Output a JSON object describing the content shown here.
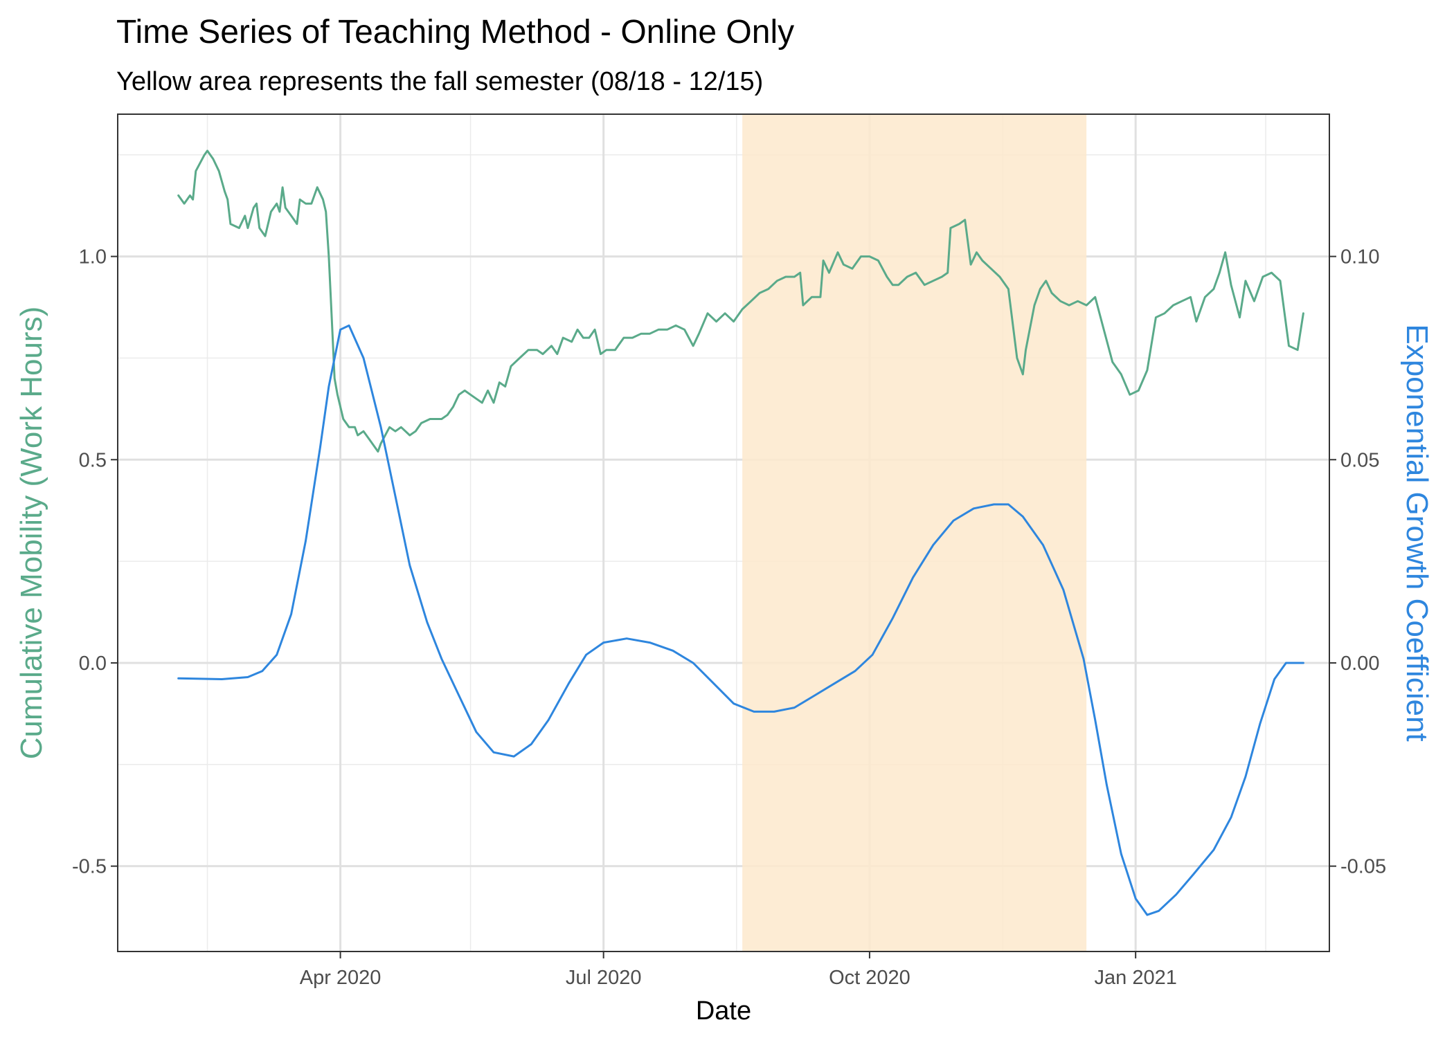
{
  "chart_data": {
    "type": "line",
    "title": "Time Series of Teaching Method - Online Only",
    "subtitle": "Yellow area represents the fall semester (08/18 - 12/15)",
    "xlabel": "Date",
    "ylabel_left": "Cumulative Mobility (Work Hours)",
    "ylabel_right": "Exponential Growth Coefficient",
    "x_ticks": [
      "Apr 2020",
      "Jul 2020",
      "Oct 2020",
      "Jan 2021"
    ],
    "y_left_ticks": [
      "1.0",
      "0.5",
      "0.0",
      "-0.5"
    ],
    "y_right_ticks": [
      "0.10",
      "0.05",
      "0.00",
      "-0.05"
    ],
    "ylim_left": [
      -0.71,
      1.35
    ],
    "ylim_right": [
      -0.071,
      0.135
    ],
    "xlim": [
      "2020-01-15",
      "2021-03-09"
    ],
    "grid": true,
    "shaded_region": {
      "start": "2020-08-18",
      "end": "2020-12-15",
      "color": "#fde9cc"
    },
    "colors": {
      "mobility": "#5aaa8a",
      "growth": "#2e86de",
      "ylabel_left": "#5aaa8a",
      "ylabel_right": "#2e86de"
    },
    "series": [
      {
        "name": "Cumulative Mobility (Work Hours)",
        "axis": "left",
        "points": [
          [
            "2020-02-05",
            1.15
          ],
          [
            "2020-02-07",
            1.13
          ],
          [
            "2020-02-09",
            1.15
          ],
          [
            "2020-02-10",
            1.14
          ],
          [
            "2020-02-11",
            1.21
          ],
          [
            "2020-02-14",
            1.25
          ],
          [
            "2020-02-15",
            1.26
          ],
          [
            "2020-02-17",
            1.24
          ],
          [
            "2020-02-19",
            1.21
          ],
          [
            "2020-02-21",
            1.16
          ],
          [
            "2020-02-22",
            1.14
          ],
          [
            "2020-02-23",
            1.08
          ],
          [
            "2020-02-26",
            1.07
          ],
          [
            "2020-02-28",
            1.1
          ],
          [
            "2020-02-29",
            1.07
          ],
          [
            "2020-03-02",
            1.12
          ],
          [
            "2020-03-03",
            1.13
          ],
          [
            "2020-03-04",
            1.07
          ],
          [
            "2020-03-06",
            1.05
          ],
          [
            "2020-03-08",
            1.11
          ],
          [
            "2020-03-10",
            1.13
          ],
          [
            "2020-03-11",
            1.11
          ],
          [
            "2020-03-12",
            1.17
          ],
          [
            "2020-03-13",
            1.12
          ],
          [
            "2020-03-15",
            1.1
          ],
          [
            "2020-03-17",
            1.08
          ],
          [
            "2020-03-18",
            1.14
          ],
          [
            "2020-03-20",
            1.13
          ],
          [
            "2020-03-22",
            1.13
          ],
          [
            "2020-03-24",
            1.17
          ],
          [
            "2020-03-26",
            1.14
          ],
          [
            "2020-03-27",
            1.11
          ],
          [
            "2020-03-28",
            1.0
          ],
          [
            "2020-03-29",
            0.85
          ],
          [
            "2020-03-30",
            0.7
          ],
          [
            "2020-03-31",
            0.66
          ],
          [
            "2020-04-02",
            0.6
          ],
          [
            "2020-04-04",
            0.58
          ],
          [
            "2020-04-06",
            0.58
          ],
          [
            "2020-04-07",
            0.56
          ],
          [
            "2020-04-09",
            0.57
          ],
          [
            "2020-04-11",
            0.55
          ],
          [
            "2020-04-14",
            0.52
          ],
          [
            "2020-04-15",
            0.54
          ],
          [
            "2020-04-18",
            0.58
          ],
          [
            "2020-04-20",
            0.57
          ],
          [
            "2020-04-22",
            0.58
          ],
          [
            "2020-04-25",
            0.56
          ],
          [
            "2020-04-27",
            0.57
          ],
          [
            "2020-04-29",
            0.59
          ],
          [
            "2020-05-02",
            0.6
          ],
          [
            "2020-05-04",
            0.6
          ],
          [
            "2020-05-06",
            0.6
          ],
          [
            "2020-05-08",
            0.61
          ],
          [
            "2020-05-10",
            0.63
          ],
          [
            "2020-05-12",
            0.66
          ],
          [
            "2020-05-14",
            0.67
          ],
          [
            "2020-05-16",
            0.66
          ],
          [
            "2020-05-18",
            0.65
          ],
          [
            "2020-05-20",
            0.64
          ],
          [
            "2020-05-22",
            0.67
          ],
          [
            "2020-05-24",
            0.64
          ],
          [
            "2020-05-26",
            0.69
          ],
          [
            "2020-05-28",
            0.68
          ],
          [
            "2020-05-30",
            0.73
          ],
          [
            "2020-06-02",
            0.75
          ],
          [
            "2020-06-05",
            0.77
          ],
          [
            "2020-06-08",
            0.77
          ],
          [
            "2020-06-10",
            0.76
          ],
          [
            "2020-06-13",
            0.78
          ],
          [
            "2020-06-15",
            0.76
          ],
          [
            "2020-06-17",
            0.8
          ],
          [
            "2020-06-20",
            0.79
          ],
          [
            "2020-06-22",
            0.82
          ],
          [
            "2020-06-24",
            0.8
          ],
          [
            "2020-06-26",
            0.8
          ],
          [
            "2020-06-28",
            0.82
          ],
          [
            "2020-06-30",
            0.76
          ],
          [
            "2020-07-02",
            0.77
          ],
          [
            "2020-07-05",
            0.77
          ],
          [
            "2020-07-08",
            0.8
          ],
          [
            "2020-07-11",
            0.8
          ],
          [
            "2020-07-14",
            0.81
          ],
          [
            "2020-07-17",
            0.81
          ],
          [
            "2020-07-20",
            0.82
          ],
          [
            "2020-07-23",
            0.82
          ],
          [
            "2020-07-26",
            0.83
          ],
          [
            "2020-07-29",
            0.82
          ],
          [
            "2020-08-01",
            0.78
          ],
          [
            "2020-08-03",
            0.81
          ],
          [
            "2020-08-06",
            0.86
          ],
          [
            "2020-08-09",
            0.84
          ],
          [
            "2020-08-12",
            0.86
          ],
          [
            "2020-08-15",
            0.84
          ],
          [
            "2020-08-18",
            0.87
          ],
          [
            "2020-08-21",
            0.89
          ],
          [
            "2020-08-24",
            0.91
          ],
          [
            "2020-08-27",
            0.92
          ],
          [
            "2020-08-30",
            0.94
          ],
          [
            "2020-09-02",
            0.95
          ],
          [
            "2020-09-05",
            0.95
          ],
          [
            "2020-09-07",
            0.96
          ],
          [
            "2020-09-08",
            0.88
          ],
          [
            "2020-09-11",
            0.9
          ],
          [
            "2020-09-14",
            0.9
          ],
          [
            "2020-09-15",
            0.99
          ],
          [
            "2020-09-17",
            0.96
          ],
          [
            "2020-09-20",
            1.01
          ],
          [
            "2020-09-22",
            0.98
          ],
          [
            "2020-09-25",
            0.97
          ],
          [
            "2020-09-28",
            1.0
          ],
          [
            "2020-10-01",
            1.0
          ],
          [
            "2020-10-04",
            0.99
          ],
          [
            "2020-10-07",
            0.95
          ],
          [
            "2020-10-09",
            0.93
          ],
          [
            "2020-10-11",
            0.93
          ],
          [
            "2020-10-14",
            0.95
          ],
          [
            "2020-10-17",
            0.96
          ],
          [
            "2020-10-20",
            0.93
          ],
          [
            "2020-10-23",
            0.94
          ],
          [
            "2020-10-26",
            0.95
          ],
          [
            "2020-10-28",
            0.96
          ],
          [
            "2020-10-29",
            1.07
          ],
          [
            "2020-11-01",
            1.08
          ],
          [
            "2020-11-03",
            1.09
          ],
          [
            "2020-11-05",
            0.98
          ],
          [
            "2020-11-07",
            1.01
          ],
          [
            "2020-11-09",
            0.99
          ],
          [
            "2020-11-12",
            0.97
          ],
          [
            "2020-11-15",
            0.95
          ],
          [
            "2020-11-18",
            0.92
          ],
          [
            "2020-11-21",
            0.75
          ],
          [
            "2020-11-23",
            0.71
          ],
          [
            "2020-11-24",
            0.77
          ],
          [
            "2020-11-27",
            0.88
          ],
          [
            "2020-11-29",
            0.92
          ],
          [
            "2020-12-01",
            0.94
          ],
          [
            "2020-12-03",
            0.91
          ],
          [
            "2020-12-06",
            0.89
          ],
          [
            "2020-12-09",
            0.88
          ],
          [
            "2020-12-12",
            0.89
          ],
          [
            "2020-12-15",
            0.88
          ],
          [
            "2020-12-18",
            0.9
          ],
          [
            "2020-12-21",
            0.82
          ],
          [
            "2020-12-24",
            0.74
          ],
          [
            "2020-12-27",
            0.71
          ],
          [
            "2020-12-30",
            0.66
          ],
          [
            "2021-01-02",
            0.67
          ],
          [
            "2021-01-05",
            0.72
          ],
          [
            "2021-01-08",
            0.85
          ],
          [
            "2021-01-11",
            0.86
          ],
          [
            "2021-01-14",
            0.88
          ],
          [
            "2021-01-17",
            0.89
          ],
          [
            "2021-01-20",
            0.9
          ],
          [
            "2021-01-22",
            0.84
          ],
          [
            "2021-01-25",
            0.9
          ],
          [
            "2021-01-28",
            0.92
          ],
          [
            "2021-01-30",
            0.96
          ],
          [
            "2021-02-01",
            1.01
          ],
          [
            "2021-02-03",
            0.93
          ],
          [
            "2021-02-06",
            0.85
          ],
          [
            "2021-02-08",
            0.94
          ],
          [
            "2021-02-11",
            0.89
          ],
          [
            "2021-02-14",
            0.95
          ],
          [
            "2021-02-17",
            0.96
          ],
          [
            "2021-02-20",
            0.94
          ],
          [
            "2021-02-23",
            0.78
          ],
          [
            "2021-02-26",
            0.77
          ],
          [
            "2021-02-28",
            0.86
          ]
        ]
      },
      {
        "name": "Exponential Growth Coefficient",
        "axis": "right",
        "points": [
          [
            "2020-02-05",
            -0.0038
          ],
          [
            "2020-02-20",
            -0.004
          ],
          [
            "2020-02-29",
            -0.0035
          ],
          [
            "2020-03-05",
            -0.002
          ],
          [
            "2020-03-10",
            0.002
          ],
          [
            "2020-03-15",
            0.012
          ],
          [
            "2020-03-20",
            0.03
          ],
          [
            "2020-03-25",
            0.053
          ],
          [
            "2020-03-28",
            0.068
          ],
          [
            "2020-04-01",
            0.082
          ],
          [
            "2020-04-04",
            0.083
          ],
          [
            "2020-04-09",
            0.075
          ],
          [
            "2020-04-15",
            0.058
          ],
          [
            "2020-04-20",
            0.041
          ],
          [
            "2020-04-25",
            0.024
          ],
          [
            "2020-05-01",
            0.01
          ],
          [
            "2020-05-06",
            0.001
          ],
          [
            "2020-05-12",
            -0.008
          ],
          [
            "2020-05-18",
            -0.017
          ],
          [
            "2020-05-24",
            -0.022
          ],
          [
            "2020-05-31",
            -0.023
          ],
          [
            "2020-06-06",
            -0.02
          ],
          [
            "2020-06-12",
            -0.014
          ],
          [
            "2020-06-19",
            -0.005
          ],
          [
            "2020-06-25",
            0.002
          ],
          [
            "2020-07-01",
            0.005
          ],
          [
            "2020-07-09",
            0.006
          ],
          [
            "2020-07-17",
            0.005
          ],
          [
            "2020-07-25",
            0.003
          ],
          [
            "2020-08-01",
            0.0
          ],
          [
            "2020-08-08",
            -0.005
          ],
          [
            "2020-08-15",
            -0.01
          ],
          [
            "2020-08-22",
            -0.012
          ],
          [
            "2020-08-29",
            -0.012
          ],
          [
            "2020-09-05",
            -0.011
          ],
          [
            "2020-09-12",
            -0.008
          ],
          [
            "2020-09-19",
            -0.005
          ],
          [
            "2020-09-26",
            -0.002
          ],
          [
            "2020-10-02",
            0.002
          ],
          [
            "2020-10-09",
            0.011
          ],
          [
            "2020-10-16",
            0.021
          ],
          [
            "2020-10-23",
            0.029
          ],
          [
            "2020-10-30",
            0.035
          ],
          [
            "2020-11-06",
            0.038
          ],
          [
            "2020-11-13",
            0.039
          ],
          [
            "2020-11-18",
            0.039
          ],
          [
            "2020-11-23",
            0.036
          ],
          [
            "2020-11-30",
            0.029
          ],
          [
            "2020-12-07",
            0.018
          ],
          [
            "2020-12-14",
            0.001
          ],
          [
            "2020-12-18",
            -0.014
          ],
          [
            "2020-12-22",
            -0.03
          ],
          [
            "2020-12-27",
            -0.047
          ],
          [
            "2021-01-01",
            -0.058
          ],
          [
            "2021-01-05",
            -0.062
          ],
          [
            "2021-01-09",
            -0.061
          ],
          [
            "2021-01-15",
            -0.057
          ],
          [
            "2021-01-21",
            -0.052
          ],
          [
            "2021-01-28",
            -0.046
          ],
          [
            "2021-02-03",
            -0.038
          ],
          [
            "2021-02-08",
            -0.028
          ],
          [
            "2021-02-13",
            -0.015
          ],
          [
            "2021-02-18",
            -0.004
          ],
          [
            "2021-02-22",
            0.0
          ],
          [
            "2021-02-28",
            0.0
          ]
        ]
      }
    ]
  }
}
